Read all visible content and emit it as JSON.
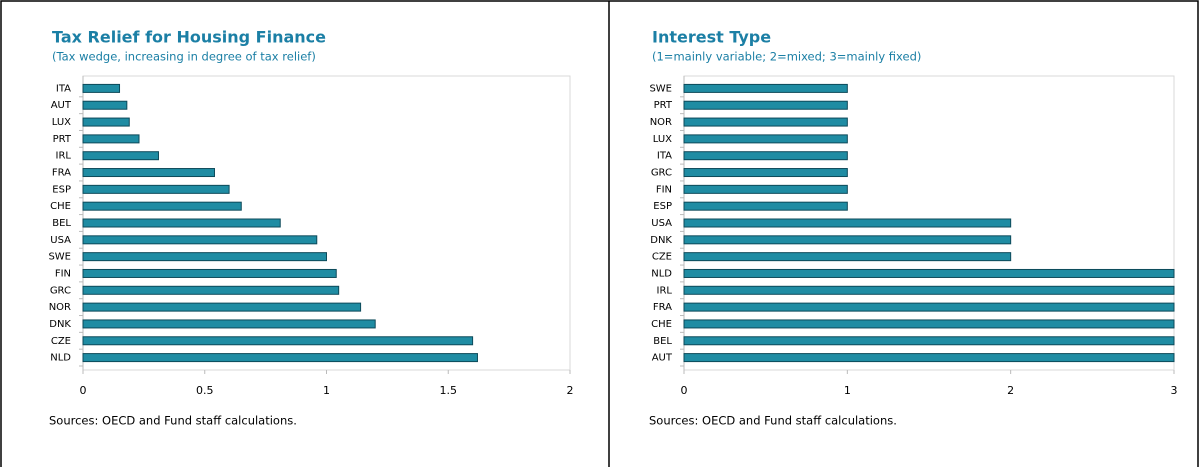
{
  "chart_data": [
    {
      "type": "bar",
      "title": "Tax Relief for Housing Finance",
      "subtitle": "(Tax wedge, increasing in degree of tax relief)",
      "categories": [
        "ITA",
        "AUT",
        "LUX",
        "PRT",
        "IRL",
        "FRA",
        "ESP",
        "CHE",
        "BEL",
        "USA",
        "SWE",
        "FIN",
        "GRC",
        "NOR",
        "DNK",
        "CZE",
        "NLD"
      ],
      "values": [
        0.15,
        0.18,
        0.19,
        0.23,
        0.31,
        0.54,
        0.6,
        0.65,
        0.81,
        0.96,
        1.0,
        1.04,
        1.05,
        1.14,
        1.2,
        1.6,
        1.62
      ],
      "color": "#1f8ca3",
      "edge_color": "#0d4a5a",
      "xlim": [
        0,
        2
      ],
      "xticks": [
        0,
        0.5,
        1,
        1.5,
        2
      ],
      "source": "Sources: OECD and Fund staff calculations."
    },
    {
      "type": "bar",
      "title": "Interest Type",
      "subtitle": "(1=mainly variable; 2=mixed; 3=mainly fixed)",
      "categories": [
        "SWE",
        "PRT",
        "NOR",
        "LUX",
        "ITA",
        "GRC",
        "FIN",
        "ESP",
        "USA",
        "DNK",
        "CZE",
        "NLD",
        "IRL",
        "FRA",
        "CHE",
        "BEL",
        "AUT"
      ],
      "values": [
        1,
        1,
        1,
        1,
        1,
        1,
        1,
        1,
        2,
        2,
        2,
        3,
        3,
        3,
        3,
        3,
        3
      ],
      "color": "#1f8ca3",
      "edge_color": "#0d4a5a",
      "xlim": [
        0,
        3
      ],
      "xticks": [
        0,
        1,
        2,
        3
      ],
      "source": "Sources: OECD and Fund staff calculations."
    }
  ]
}
